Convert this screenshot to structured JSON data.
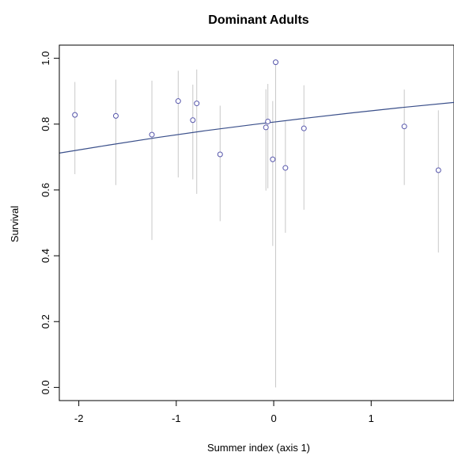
{
  "chart_data": {
    "type": "scatter",
    "title": "Dominant Adults",
    "xlabel": "Summer index (axis 1)",
    "ylabel": "Survival",
    "xlim": [
      -2.2,
      1.85
    ],
    "ylim": [
      -0.04,
      1.04
    ],
    "xticks": [
      "-2",
      "-1",
      "0",
      "1"
    ],
    "yticks": [
      "0.0",
      "0.2",
      "0.4",
      "0.6",
      "0.8",
      "1.0"
    ],
    "grid": false,
    "colors": {
      "points": "#5555aa",
      "fit_line": "#3a4f8a",
      "error_bars": "#c8c8c8",
      "axes": "#000000"
    },
    "points": [
      {
        "x": -2.04,
        "y": 0.828,
        "lower": 0.648,
        "upper": 0.928
      },
      {
        "x": -1.62,
        "y": 0.825,
        "lower": 0.615,
        "upper": 0.935
      },
      {
        "x": -1.25,
        "y": 0.768,
        "lower": 0.448,
        "upper": 0.932
      },
      {
        "x": -0.98,
        "y": 0.87,
        "lower": 0.638,
        "upper": 0.962
      },
      {
        "x": -0.83,
        "y": 0.812,
        "lower": 0.632,
        "upper": 0.92
      },
      {
        "x": -0.79,
        "y": 0.863,
        "lower": 0.588,
        "upper": 0.966
      },
      {
        "x": -0.55,
        "y": 0.708,
        "lower": 0.505,
        "upper": 0.856
      },
      {
        "x": -0.08,
        "y": 0.79,
        "lower": 0.598,
        "upper": 0.906
      },
      {
        "x": -0.06,
        "y": 0.808,
        "lower": 0.605,
        "upper": 0.922
      },
      {
        "x": -0.01,
        "y": 0.693,
        "lower": 0.43,
        "upper": 0.87
      },
      {
        "x": 0.02,
        "y": 0.988,
        "lower": 0.0,
        "upper": 0.995
      },
      {
        "x": 0.12,
        "y": 0.667,
        "lower": 0.47,
        "upper": 0.81
      },
      {
        "x": 0.31,
        "y": 0.787,
        "lower": 0.54,
        "upper": 0.918
      },
      {
        "x": 1.34,
        "y": 0.793,
        "lower": 0.615,
        "upper": 0.905
      },
      {
        "x": 1.69,
        "y": 0.66,
        "lower": 0.41,
        "upper": 0.842
      }
    ],
    "fit_line": [
      {
        "x": -2.2,
        "y": 0.712
      },
      {
        "x": -1.7,
        "y": 0.736
      },
      {
        "x": -1.2,
        "y": 0.759
      },
      {
        "x": -0.7,
        "y": 0.78
      },
      {
        "x": -0.2,
        "y": 0.799
      },
      {
        "x": 0.3,
        "y": 0.817
      },
      {
        "x": 0.8,
        "y": 0.834
      },
      {
        "x": 1.3,
        "y": 0.85
      },
      {
        "x": 1.85,
        "y": 0.866
      }
    ]
  }
}
